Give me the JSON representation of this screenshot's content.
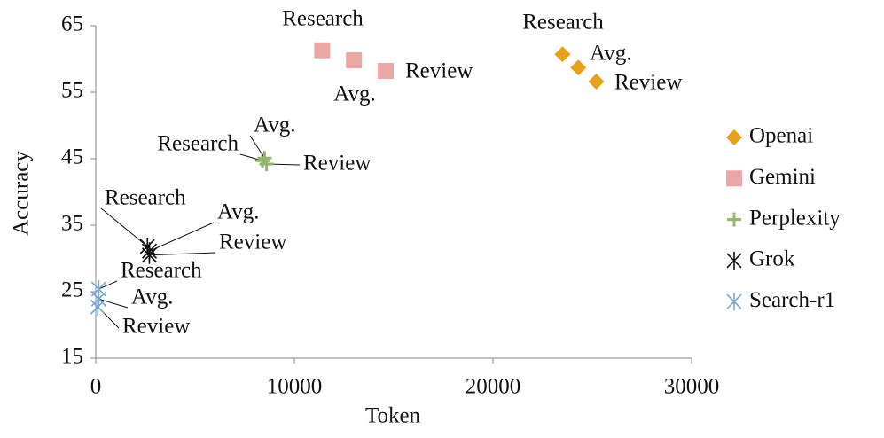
{
  "chart_data": {
    "type": "scatter",
    "x_label": "Token",
    "y_label": "Accuracy",
    "xlim": [
      0,
      30000
    ],
    "xticks": [
      0,
      10000,
      20000,
      30000
    ],
    "ylim": [
      15,
      65
    ],
    "yticks": [
      15,
      25,
      35,
      45,
      55,
      65
    ],
    "grid": false,
    "legend": "right",
    "series": [
      {
        "name": "Openai",
        "color": "#e5a11c",
        "marker": "diamond",
        "x": [
          23500,
          24300,
          25200
        ],
        "values": [
          60.7,
          58.7,
          56.6
        ],
        "point_labels": [
          "Research",
          "Avg.",
          "Review"
        ]
      },
      {
        "name": "Gemini",
        "color": "#eba6a6",
        "marker": "square",
        "x": [
          11400,
          13000,
          14600
        ],
        "values": [
          61.3,
          59.8,
          58.2
        ],
        "point_labels": [
          "Research",
          "Avg.",
          "Review"
        ]
      },
      {
        "name": "Perplexity",
        "color": "#93b46a",
        "marker": "plus",
        "x": [
          8400,
          8500,
          8600
        ],
        "values": [
          44.7,
          45.1,
          44.2
        ],
        "point_labels": [
          "Research",
          "Avg.",
          "Review"
        ]
      },
      {
        "name": "Grok",
        "color": "#111111",
        "marker": "star",
        "x": [
          2600,
          2700,
          2700
        ],
        "values": [
          31.8,
          31.1,
          30.5
        ],
        "point_labels": [
          "Research",
          "Avg.",
          "Review"
        ]
      },
      {
        "name": "Search-r1",
        "color": "#7aa6d8",
        "marker": "star",
        "x": [
          150,
          150,
          100
        ],
        "values": [
          25.4,
          23.9,
          22.7
        ],
        "point_labels": [
          "Research",
          "Avg.",
          "Review"
        ]
      }
    ]
  }
}
